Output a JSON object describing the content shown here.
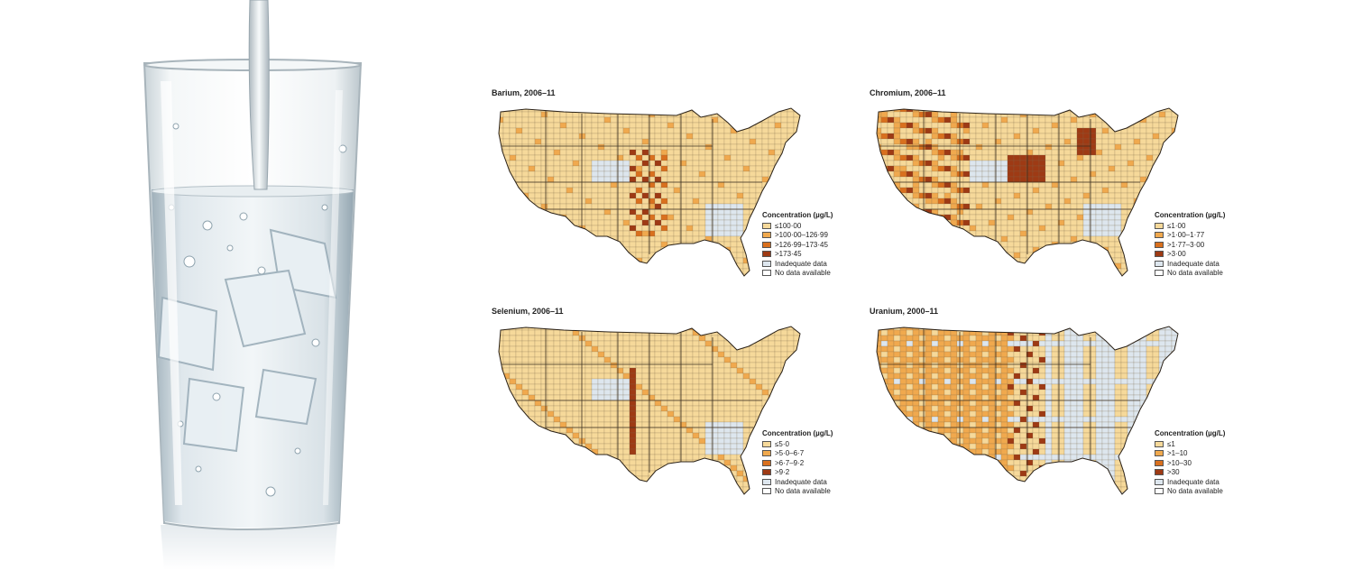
{
  "panels": [
    {
      "title": "Barium, 2006–11",
      "legend_title": "Concentration (µg/L)",
      "classes": [
        {
          "label": "≤100·00",
          "color": "#f6d99a"
        },
        {
          "label": ">100·00–126·99",
          "color": "#f0a94e"
        },
        {
          "label": ">126·99–173·45",
          "color": "#d9701e"
        },
        {
          "label": ">173·45",
          "color": "#9e3a14"
        },
        {
          "label": "Inadequate data",
          "color": "#dde6ee"
        },
        {
          "label": "No data available",
          "color": "#ffffff"
        }
      ]
    },
    {
      "title": "Chromium, 2006–11",
      "legend_title": "Concentration (µg/L)",
      "classes": [
        {
          "label": "≤1·00",
          "color": "#f6d99a"
        },
        {
          "label": ">1·00–1·77",
          "color": "#f0a94e"
        },
        {
          "label": ">1·77–3·00",
          "color": "#d9701e"
        },
        {
          "label": ">3·00",
          "color": "#9e3a14"
        },
        {
          "label": "Inadequate data",
          "color": "#dde6ee"
        },
        {
          "label": "No data available",
          "color": "#ffffff"
        }
      ]
    },
    {
      "title": "Selenium, 2006–11",
      "legend_title": "Concentration (µg/L)",
      "classes": [
        {
          "label": "≤5·0",
          "color": "#f6d99a"
        },
        {
          "label": ">5·0–6·7",
          "color": "#f0a94e"
        },
        {
          "label": ">6·7–9·2",
          "color": "#d9701e"
        },
        {
          "label": ">9·2",
          "color": "#9e3a14"
        },
        {
          "label": "Inadequate data",
          "color": "#dde6ee"
        },
        {
          "label": "No data available",
          "color": "#ffffff"
        }
      ]
    },
    {
      "title": "Uranium, 2000–11",
      "legend_title": "Concentration (µg/L)",
      "classes": [
        {
          "label": "≤1",
          "color": "#f6d99a"
        },
        {
          "label": ">1–10",
          "color": "#f0a94e"
        },
        {
          "label": ">10–30",
          "color": "#d9701e"
        },
        {
          "label": ">30",
          "color": "#9e3a14"
        },
        {
          "label": "Inadequate data",
          "color": "#dde6ee"
        },
        {
          "label": "No data available",
          "color": "#ffffff"
        }
      ]
    }
  ]
}
